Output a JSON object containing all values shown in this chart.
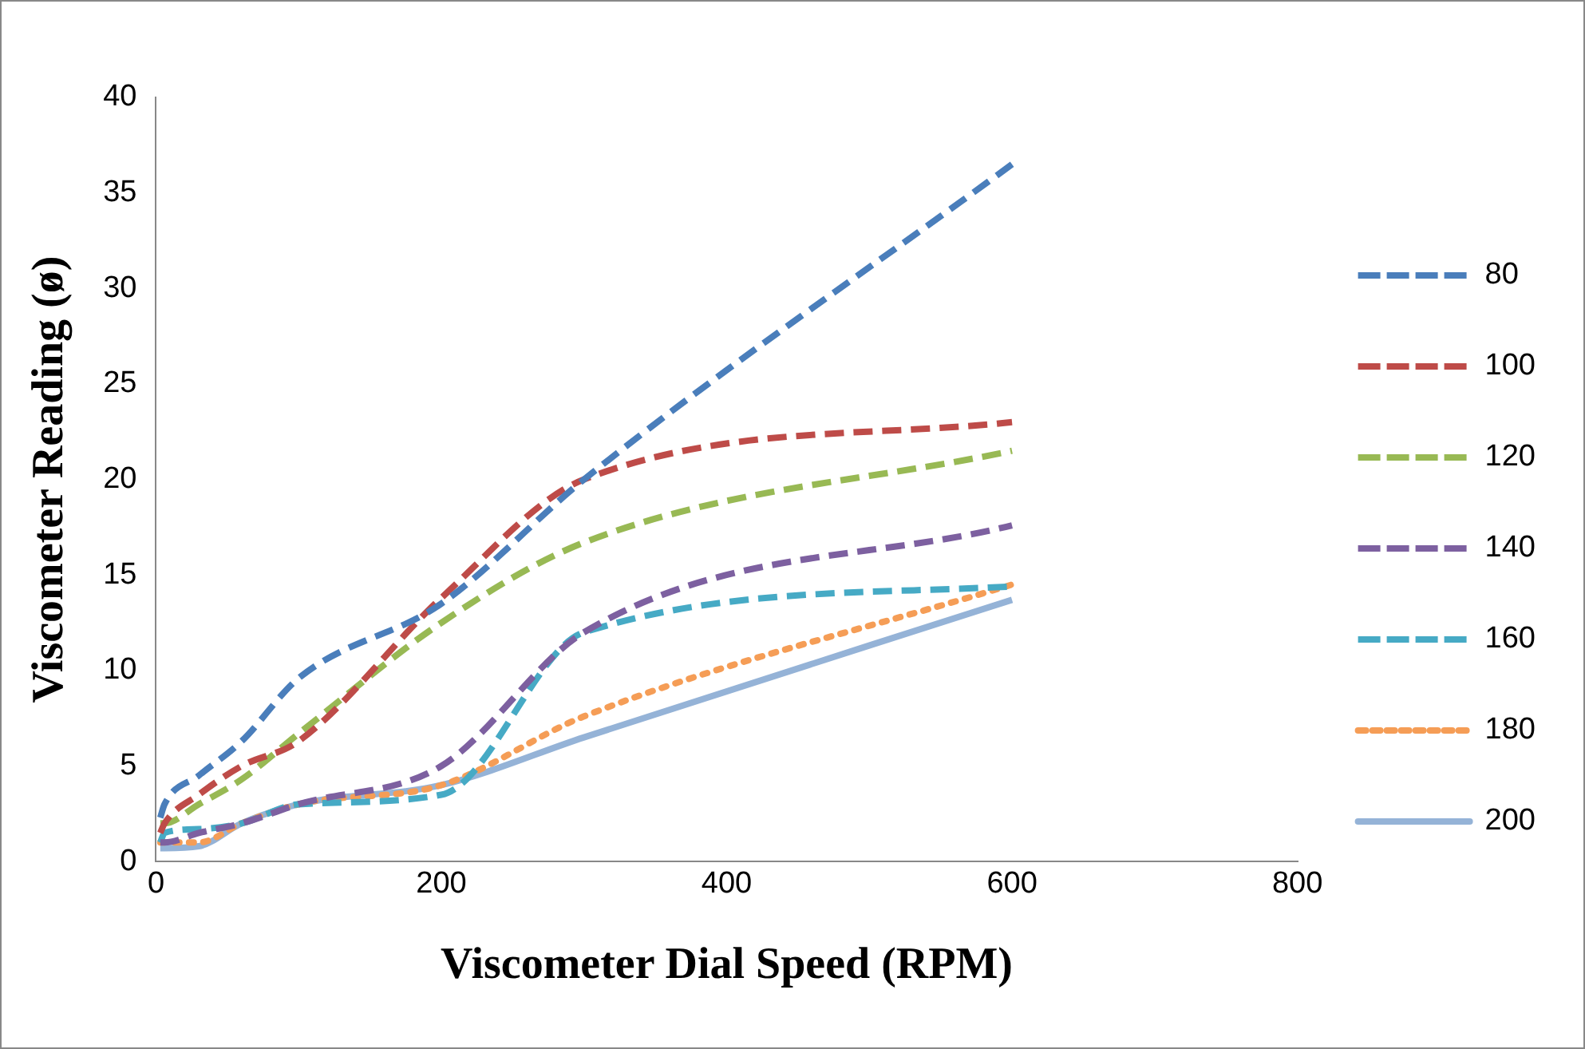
{
  "chart_data": {
    "type": "line",
    "xlabel": "Viscometer Dial Speed (RPM)",
    "ylabel": "Viscometer Reading (ø)",
    "x": [
      3,
      6,
      30,
      60,
      100,
      200,
      300,
      600
    ],
    "series": [
      {
        "name": "80",
        "color": "#4a7ebb",
        "line_style": "dashed",
        "values": [
          2.3,
          3,
          4.5,
          6.3,
          9.6,
          13.5,
          20,
          36.5
        ]
      },
      {
        "name": "100",
        "color": "#be4b48",
        "line_style": "dashed",
        "values": [
          1.5,
          2,
          3.5,
          5,
          6.3,
          13.8,
          20,
          23
        ]
      },
      {
        "name": "120",
        "color": "#98b954",
        "line_style": "dashed",
        "values": [
          2,
          2,
          3,
          4.3,
          6.7,
          12.5,
          16.7,
          21.5
        ]
      },
      {
        "name": "140",
        "color": "#7d60a0",
        "line_style": "dashed",
        "values": [
          1,
          1,
          1.5,
          2,
          3,
          5,
          12,
          17.6
        ]
      },
      {
        "name": "160",
        "color": "#46aac5",
        "line_style": "dashed",
        "values": [
          1,
          1.5,
          1.7,
          2,
          3,
          3.5,
          12,
          14.4
        ]
      },
      {
        "name": "180",
        "color": "#f59d56",
        "line_style": "dotted",
        "values": [
          1,
          1,
          1,
          2,
          3,
          4,
          7.6,
          14.5
        ]
      },
      {
        "name": "200",
        "color": "#95b3d7",
        "line_style": "solid",
        "values": [
          0.7,
          0.7,
          0.8,
          2,
          3,
          4,
          6.5,
          13.7
        ]
      }
    ],
    "xlim": [
      0,
      800
    ],
    "xticks": [
      0,
      200,
      400,
      600,
      800
    ],
    "ylim": [
      0,
      40
    ],
    "yticks": [
      0,
      5,
      10,
      15,
      20,
      25,
      30,
      35,
      40
    ],
    "grid": false,
    "legend": "right",
    "marker": "none"
  }
}
